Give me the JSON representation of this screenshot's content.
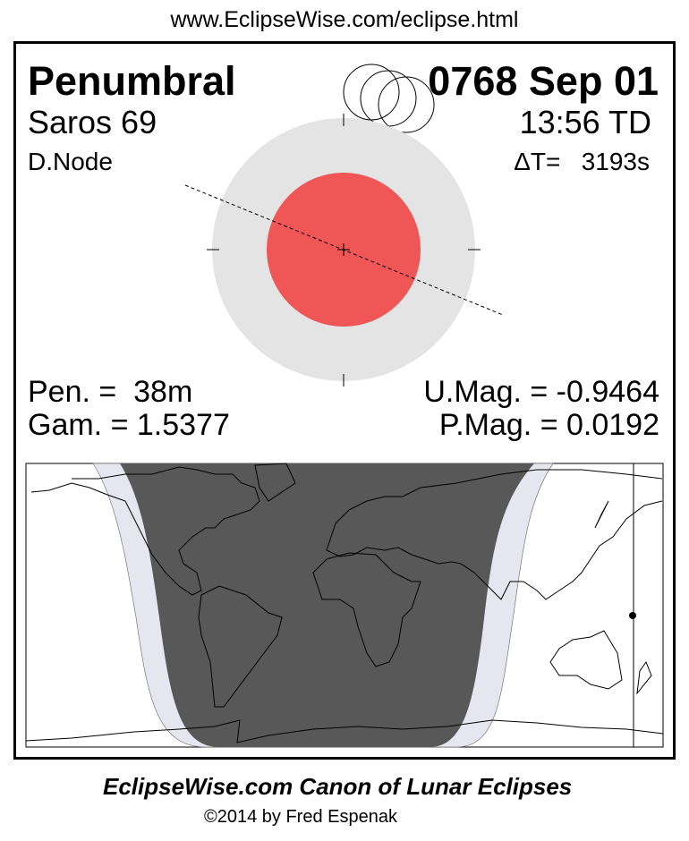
{
  "header": {
    "url": "www.EclipseWise.com/eclipse.html"
  },
  "eclipse": {
    "type": "Penumbral",
    "date": "0768 Sep 01",
    "saros": "Saros  69",
    "time": "13:56 TD",
    "node": "D.Node",
    "delta_t": "ΔT=   3193s",
    "pen_duration": "Pen. =  38m",
    "gamma": "Gam. = 1.5377",
    "umbral_mag": "U.Mag. = -0.9464",
    "penumbral_mag": "P.Mag. = 0.0192"
  },
  "colors": {
    "penumbra": "#e4e4e4",
    "umbra": "#f05656",
    "map_night": "#585858",
    "map_penumbral_band": "#e6e6f0"
  },
  "footer": {
    "title": "EclipseWise.com Canon of Lunar Eclipses",
    "copyright": "©2014 by Fred Espenak"
  }
}
